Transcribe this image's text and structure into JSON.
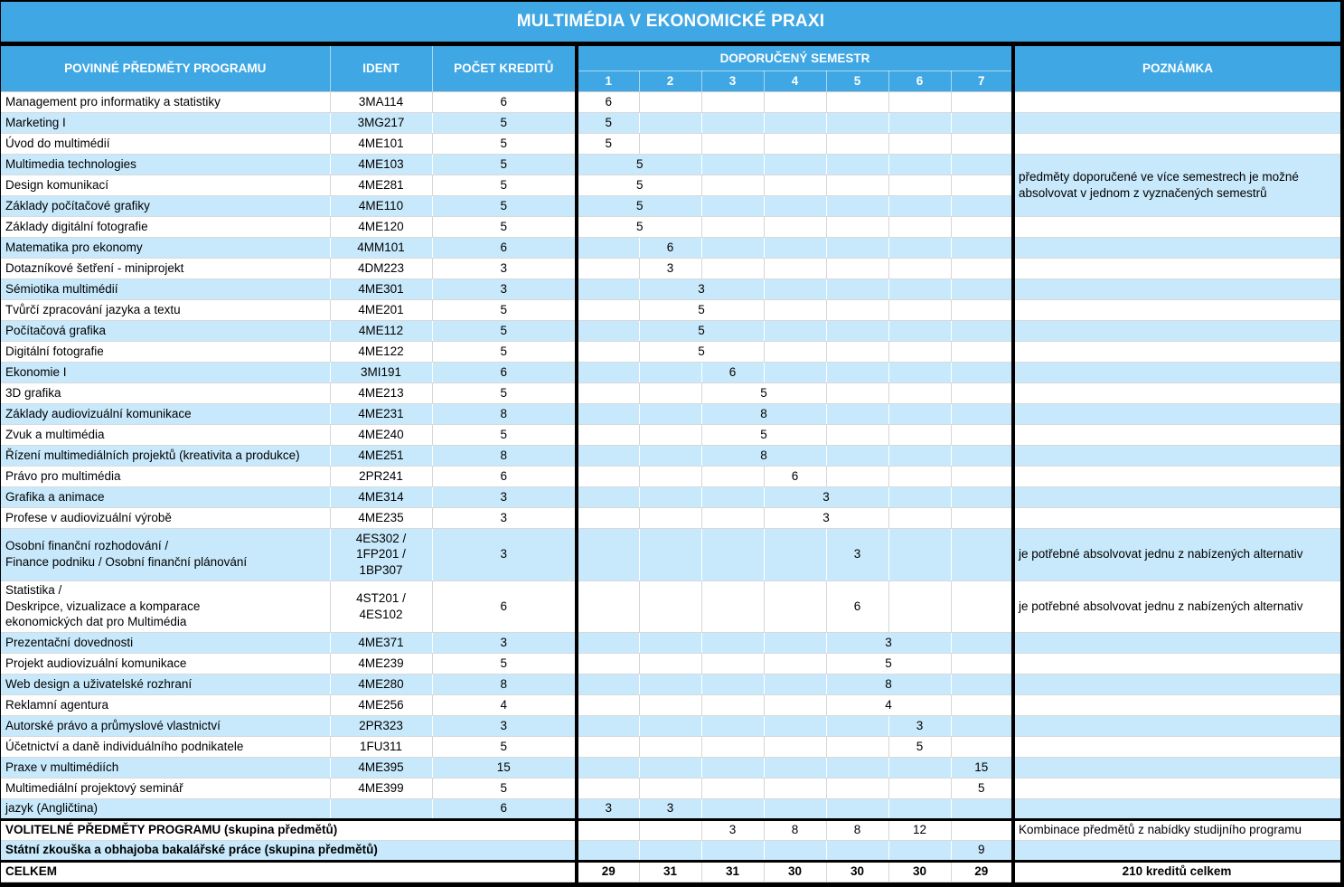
{
  "title": "MULTIMÉDIA V EKONOMICKÉ PRAXI",
  "colors": {
    "header_blue": "#3FA7E3",
    "row_blue": "#C8E9FB",
    "row_white": "#FFFFFF",
    "border_black": "#000000",
    "grid_gray": "#D9D9D9"
  },
  "columns": {
    "subjects": "POVINNÉ PŘEDMĚTY PROGRAMU",
    "ident": "IDENT",
    "credits": "POČET KREDITŮ",
    "semester_group": "DOPORUČENÝ SEMESTR",
    "semesters": [
      "1",
      "2",
      "3",
      "4",
      "5",
      "6",
      "7"
    ],
    "note": "POZNÁMKA"
  },
  "rows": [
    {
      "name": "Management pro informatiky a statistiky",
      "ident": "3MA114",
      "credits": "6",
      "sem": [
        {
          "c": 1,
          "s": 1,
          "v": "6"
        }
      ]
    },
    {
      "name": "Marketing I",
      "ident": "3MG217",
      "credits": "5",
      "sem": [
        {
          "c": 1,
          "s": 1,
          "v": "5"
        }
      ]
    },
    {
      "name": "Úvod do multimédií",
      "ident": "4ME101",
      "credits": "5",
      "sem": [
        {
          "c": 1,
          "s": 1,
          "v": "5"
        }
      ]
    },
    {
      "name": "Multimedia technologies",
      "ident": "4ME103",
      "credits": "5",
      "sem": [
        {
          "c": 1,
          "s": 2,
          "v": "5"
        }
      ],
      "note": {
        "text": "předměty doporučené ve více semestrech je možné absolvovat v jednom z vyznačených semestrů",
        "rowspan": 3,
        "blue": true
      }
    },
    {
      "name": "Design komunikací",
      "ident": "4ME281",
      "credits": "5",
      "sem": [
        {
          "c": 1,
          "s": 2,
          "v": "5"
        }
      ],
      "note_covered": true
    },
    {
      "name": "Základy počítačové grafiky",
      "ident": "4ME110",
      "credits": "5",
      "sem": [
        {
          "c": 1,
          "s": 2,
          "v": "5"
        }
      ],
      "note_covered": true
    },
    {
      "name": "Základy digitální fotografie",
      "ident": "4ME120",
      "credits": "5",
      "sem": [
        {
          "c": 1,
          "s": 2,
          "v": "5"
        }
      ]
    },
    {
      "name": "Matematika pro ekonomy",
      "ident": "4MM101",
      "credits": "6",
      "sem": [
        {
          "c": 2,
          "s": 1,
          "v": "6"
        }
      ]
    },
    {
      "name": "Dotazníkové šetření - miniprojekt",
      "ident": "4DM223",
      "credits": "3",
      "sem": [
        {
          "c": 2,
          "s": 1,
          "v": "3"
        }
      ]
    },
    {
      "name": "Sémiotika multimédií",
      "ident": "4ME301",
      "credits": "3",
      "sem": [
        {
          "c": 2,
          "s": 2,
          "v": "3"
        }
      ]
    },
    {
      "name": "Tvůrčí zpracování jazyka a textu",
      "ident": "4ME201",
      "credits": "5",
      "sem": [
        {
          "c": 2,
          "s": 2,
          "v": "5"
        }
      ]
    },
    {
      "name": "Počítačová grafika",
      "ident": "4ME112",
      "credits": "5",
      "sem": [
        {
          "c": 2,
          "s": 2,
          "v": "5"
        }
      ]
    },
    {
      "name": "Digitální fotografie",
      "ident": "4ME122",
      "credits": "5",
      "sem": [
        {
          "c": 2,
          "s": 2,
          "v": "5"
        }
      ]
    },
    {
      "name": "Ekonomie I",
      "ident": "3MI191",
      "credits": "6",
      "sem": [
        {
          "c": 3,
          "s": 1,
          "v": "6"
        }
      ]
    },
    {
      "name": "3D grafika",
      "ident": "4ME213",
      "credits": "5",
      "sem": [
        {
          "c": 3,
          "s": 2,
          "v": "5"
        }
      ]
    },
    {
      "name": "Základy audiovizuální komunikace",
      "ident": "4ME231",
      "credits": "8",
      "sem": [
        {
          "c": 3,
          "s": 2,
          "v": "8"
        }
      ]
    },
    {
      "name": "Zvuk a multimédia",
      "ident": "4ME240",
      "credits": "5",
      "sem": [
        {
          "c": 3,
          "s": 2,
          "v": "5"
        }
      ]
    },
    {
      "name": "Řízení multimediálních projektů (kreativita a produkce)",
      "ident": "4ME251",
      "credits": "8",
      "sem": [
        {
          "c": 3,
          "s": 2,
          "v": "8"
        }
      ]
    },
    {
      "name": "Právo pro multimédia",
      "ident": "2PR241",
      "credits": "6",
      "sem": [
        {
          "c": 4,
          "s": 1,
          "v": "6"
        }
      ]
    },
    {
      "name": "Grafika a animace",
      "ident": "4ME314",
      "credits": "3",
      "sem": [
        {
          "c": 4,
          "s": 2,
          "v": "3"
        }
      ]
    },
    {
      "name": "Profese v audiovizuální výrobě",
      "ident": "4ME235",
      "credits": "3",
      "sem": [
        {
          "c": 4,
          "s": 2,
          "v": "3"
        }
      ]
    },
    {
      "name": "Osobní finanční rozhodování /\nFinance podniku / Osobní finanční plánování",
      "ident": "4ES302 /\n1FP201 /\n1BP307",
      "credits": "3",
      "h": 58,
      "sem": [
        {
          "c": 5,
          "s": 1,
          "v": "3"
        }
      ],
      "note": {
        "text": "je potřebné absolvovat jednu z nabízených alternativ"
      }
    },
    {
      "name": "Statistika /\nDeskripce, vizualizace a komparace\nekonomických dat pro Multimédia",
      "ident": "4ST201 /\n4ES102",
      "credits": "6",
      "h": 57,
      "sem": [
        {
          "c": 5,
          "s": 1,
          "v": "6"
        }
      ],
      "note": {
        "text": "je potřebné absolvovat jednu z nabízených alternativ"
      }
    },
    {
      "name": "Prezentační dovednosti",
      "ident": "4ME371",
      "credits": "3",
      "sem": [
        {
          "c": 5,
          "s": 2,
          "v": "3"
        }
      ]
    },
    {
      "name": "Projekt audiovizuální komunikace",
      "ident": "4ME239",
      "credits": "5",
      "sem": [
        {
          "c": 5,
          "s": 2,
          "v": "5"
        }
      ]
    },
    {
      "name": "Web design a uživatelské rozhraní",
      "ident": "4ME280",
      "credits": "8",
      "sem": [
        {
          "c": 5,
          "s": 2,
          "v": "8"
        }
      ]
    },
    {
      "name": "Reklamní agentura",
      "ident": "4ME256",
      "credits": "4",
      "sem": [
        {
          "c": 5,
          "s": 2,
          "v": "4"
        }
      ]
    },
    {
      "name": "Autorské právo a průmyslové vlastnictví",
      "ident": "2PR323",
      "credits": "3",
      "sem": [
        {
          "c": 6,
          "s": 1,
          "v": "3"
        }
      ]
    },
    {
      "name": "Účetnictví a daně individuálního podnikatele",
      "ident": "1FU311",
      "credits": "5",
      "sem": [
        {
          "c": 6,
          "s": 1,
          "v": "5"
        }
      ]
    },
    {
      "name": "Praxe v multimédiích",
      "ident": "4ME395",
      "credits": "15",
      "sem": [
        {
          "c": 7,
          "s": 1,
          "v": "15"
        }
      ]
    },
    {
      "name": "Multimediální projektový seminář",
      "ident": "4ME399",
      "credits": "5",
      "sem": [
        {
          "c": 7,
          "s": 1,
          "v": "5"
        }
      ]
    },
    {
      "name": "jazyk (Angličtina)",
      "ident": "",
      "credits": "6",
      "sem": [
        {
          "c": 1,
          "s": 1,
          "v": "3"
        },
        {
          "c": 2,
          "s": 1,
          "v": "3"
        }
      ]
    },
    {
      "name": "VOLITELNÉ PŘEDMĚTY PROGRAMU (skupina předmětů)",
      "merge_left": true,
      "bold": true,
      "thick_top": true,
      "sem": [
        {
          "c": 3,
          "s": 1,
          "v": "3"
        },
        {
          "c": 4,
          "s": 1,
          "v": "8"
        },
        {
          "c": 5,
          "s": 1,
          "v": "8"
        },
        {
          "c": 6,
          "s": 1,
          "v": "12"
        }
      ],
      "note": {
        "text": "Kombinace předmětů z nabídky studijního programu"
      }
    },
    {
      "name": "Státní zkouška a obhajoba bakalářské práce (skupina předmětů)",
      "merge_left": true,
      "bold": true,
      "sem": [
        {
          "c": 7,
          "s": 1,
          "v": "9"
        }
      ]
    },
    {
      "name": "CELKEM",
      "merge_left": true,
      "bold": true,
      "thick_top": true,
      "sem_bold": true,
      "sem": [
        {
          "c": 1,
          "s": 1,
          "v": "29"
        },
        {
          "c": 2,
          "s": 1,
          "v": "31"
        },
        {
          "c": 3,
          "s": 1,
          "v": "31"
        },
        {
          "c": 4,
          "s": 1,
          "v": "30"
        },
        {
          "c": 5,
          "s": 1,
          "v": "30"
        },
        {
          "c": 6,
          "s": 1,
          "v": "30"
        },
        {
          "c": 7,
          "s": 1,
          "v": "29"
        }
      ],
      "note": {
        "text": "210 kreditů celkem",
        "bold": true,
        "center": true
      }
    }
  ]
}
